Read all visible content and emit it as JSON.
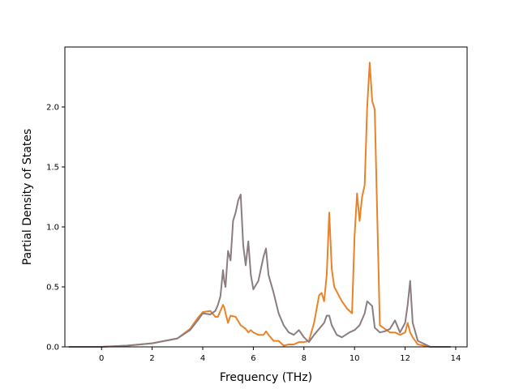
{
  "chart_data": {
    "type": "line",
    "title": "",
    "xlabel": "Frequency (THz)",
    "ylabel": "Partial Density of States",
    "xlim": [
      -1.45,
      14.45
    ],
    "ylim": [
      0.0,
      2.5
    ],
    "xticks": [
      0,
      2,
      4,
      6,
      8,
      10,
      12,
      14
    ],
    "xtick_labels": [
      "0",
      "2",
      "4",
      "6",
      "8",
      "10",
      "12",
      "14"
    ],
    "yticks": [
      0.0,
      0.5,
      1.0,
      1.5,
      2.0
    ],
    "ytick_labels": [
      "0.0",
      "0.5",
      "1.0",
      "1.5",
      "2.0"
    ],
    "grid": false,
    "legend": "none",
    "colors": {
      "series_a": "#e8832a",
      "series_b": "#8c7d7f",
      "axis": "#000000"
    },
    "series": [
      {
        "color": "#e8832a",
        "x": [
          -1.3,
          0.0,
          1.0,
          2.0,
          3.0,
          3.5,
          3.8,
          4.0,
          4.3,
          4.5,
          4.6,
          4.7,
          4.8,
          4.85,
          4.9,
          5.0,
          5.1,
          5.3,
          5.5,
          5.7,
          5.8,
          5.9,
          6.0,
          6.2,
          6.4,
          6.5,
          6.6,
          6.8,
          7.0,
          7.2,
          7.4,
          7.6,
          7.8,
          8.0,
          8.2,
          8.4,
          8.6,
          8.7,
          8.8,
          8.9,
          9.0,
          9.1,
          9.2,
          9.5,
          9.7,
          9.9,
          10.0,
          10.1,
          10.2,
          10.3,
          10.4,
          10.5,
          10.6,
          10.7,
          10.8,
          11.0,
          11.2,
          11.4,
          11.6,
          11.8,
          12.0,
          12.1,
          12.2,
          12.3,
          12.5,
          13.0,
          13.8
        ],
        "y": [
          0,
          0,
          0.01,
          0.03,
          0.07,
          0.15,
          0.24,
          0.29,
          0.3,
          0.25,
          0.25,
          0.3,
          0.35,
          0.33,
          0.28,
          0.2,
          0.26,
          0.25,
          0.18,
          0.15,
          0.12,
          0.14,
          0.12,
          0.1,
          0.1,
          0.13,
          0.1,
          0.05,
          0.05,
          0.01,
          0.02,
          0.02,
          0.04,
          0.04,
          0.05,
          0.2,
          0.43,
          0.45,
          0.38,
          0.6,
          1.12,
          0.65,
          0.5,
          0.38,
          0.32,
          0.28,
          0.92,
          1.28,
          1.05,
          1.25,
          1.35,
          2.0,
          2.37,
          2.05,
          1.98,
          0.18,
          0.15,
          0.12,
          0.12,
          0.1,
          0.12,
          0.2,
          0.12,
          0.08,
          0.02,
          0.0,
          0.0
        ]
      },
      {
        "color": "#8c7d7f",
        "x": [
          -1.3,
          0.0,
          1.0,
          2.0,
          3.0,
          3.5,
          3.8,
          4.0,
          4.3,
          4.5,
          4.6,
          4.7,
          4.8,
          4.85,
          4.9,
          5.0,
          5.1,
          5.2,
          5.3,
          5.4,
          5.5,
          5.6,
          5.7,
          5.8,
          5.9,
          6.0,
          6.2,
          6.4,
          6.5,
          6.6,
          6.8,
          7.0,
          7.2,
          7.4,
          7.6,
          7.8,
          8.0,
          8.2,
          8.4,
          8.6,
          8.8,
          8.9,
          9.0,
          9.1,
          9.3,
          9.5,
          9.8,
          10.0,
          10.2,
          10.4,
          10.5,
          10.6,
          10.7,
          10.8,
          11.0,
          11.2,
          11.4,
          11.6,
          11.8,
          12.0,
          12.1,
          12.2,
          12.3,
          12.5,
          13.0,
          13.8
        ],
        "y": [
          0,
          0,
          0.01,
          0.03,
          0.07,
          0.14,
          0.22,
          0.28,
          0.27,
          0.3,
          0.35,
          0.42,
          0.64,
          0.55,
          0.5,
          0.8,
          0.72,
          1.05,
          1.12,
          1.22,
          1.27,
          0.85,
          0.68,
          0.88,
          0.6,
          0.48,
          0.55,
          0.75,
          0.82,
          0.6,
          0.45,
          0.28,
          0.18,
          0.12,
          0.1,
          0.14,
          0.08,
          0.04,
          0.1,
          0.15,
          0.2,
          0.26,
          0.26,
          0.18,
          0.1,
          0.08,
          0.12,
          0.14,
          0.18,
          0.28,
          0.38,
          0.36,
          0.34,
          0.16,
          0.12,
          0.13,
          0.15,
          0.22,
          0.12,
          0.2,
          0.35,
          0.55,
          0.2,
          0.05,
          0.0,
          0.0
        ]
      }
    ]
  }
}
